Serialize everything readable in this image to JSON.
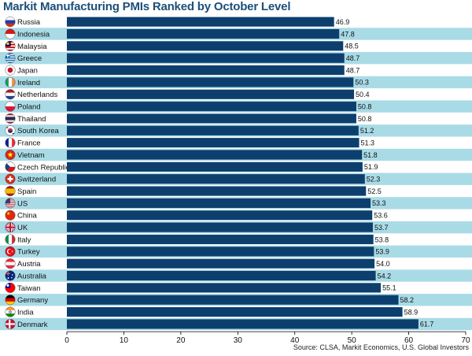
{
  "title": "Markit Manufacturing PMIs Ranked by October Level",
  "source": "Source: CLSA, Markit Economics, U.S. Global Investors",
  "colors": {
    "bar": "#0d3f6e",
    "stripe": "#a9dbe6",
    "title": "#1b4f7a"
  },
  "chart_data": {
    "type": "bar",
    "orientation": "horizontal",
    "title": "Markit Manufacturing PMIs Ranked by October Level",
    "xlabel": "",
    "ylabel": "",
    "xlim": [
      0,
      70
    ],
    "xticks": [
      0,
      10,
      20,
      30,
      40,
      50,
      60,
      70
    ],
    "grid": false,
    "legend": "none",
    "categories": [
      "Russia",
      "Indonesia",
      "Malaysia",
      "Greece",
      "Japan",
      "Ireland",
      "Netherlands",
      "Poland",
      "Thailand",
      "South Korea",
      "France",
      "Vietnam",
      "Czech Republic",
      "Switzerland",
      "Spain",
      "US",
      "China",
      "UK",
      "Italy",
      "Turkey",
      "Austria",
      "Australia",
      "Taiwan",
      "Germany",
      "India",
      "Denmark"
    ],
    "values": [
      46.9,
      47.8,
      48.5,
      48.7,
      48.7,
      50.3,
      50.4,
      50.8,
      50.8,
      51.2,
      51.3,
      51.8,
      51.9,
      52.3,
      52.5,
      53.3,
      53.6,
      53.7,
      53.8,
      53.9,
      54.0,
      54.2,
      55.1,
      58.2,
      58.9,
      61.7
    ],
    "value_labels": [
      "46.9",
      "47.8",
      "48.5",
      "48.7",
      "48.7",
      "50.3",
      "50.4",
      "50.8",
      "50.8",
      "51.2",
      "51.3",
      "51.8",
      "51.9",
      "52.3",
      "52.5",
      "53.3",
      "53.6",
      "53.7",
      "53.8",
      "53.9",
      "54.0",
      "54.2",
      "55.1",
      "58.2",
      "58.9",
      "61.7"
    ],
    "flag_icons": [
      "russia-flag-icon",
      "indonesia-flag-icon",
      "malaysia-flag-icon",
      "greece-flag-icon",
      "japan-flag-icon",
      "ireland-flag-icon",
      "netherlands-flag-icon",
      "poland-flag-icon",
      "thailand-flag-icon",
      "south-korea-flag-icon",
      "france-flag-icon",
      "vietnam-flag-icon",
      "czech-republic-flag-icon",
      "switzerland-flag-icon",
      "spain-flag-icon",
      "us-flag-icon",
      "china-flag-icon",
      "uk-flag-icon",
      "italy-flag-icon",
      "turkey-flag-icon",
      "austria-flag-icon",
      "australia-flag-icon",
      "taiwan-flag-icon",
      "germany-flag-icon",
      "india-flag-icon",
      "denmark-flag-icon"
    ]
  }
}
